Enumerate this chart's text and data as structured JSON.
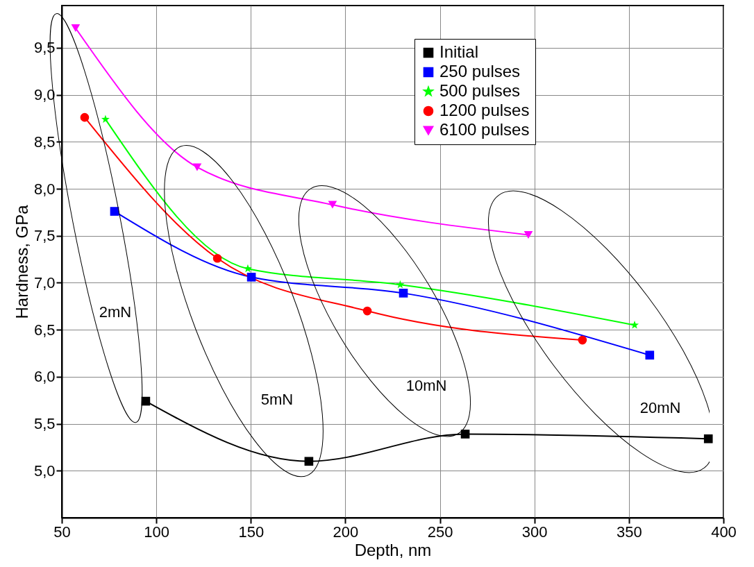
{
  "chart_data": {
    "type": "line",
    "xlabel": "Depth, nm",
    "ylabel": "Hardness, GPa",
    "xlim": [
      50,
      400
    ],
    "xticks": [
      50,
      100,
      150,
      200,
      250,
      300,
      350,
      400
    ],
    "ylim": [
      4.5,
      9.95
    ],
    "yticks": [
      {
        "value": 5.0,
        "label": "5,0"
      },
      {
        "value": 5.5,
        "label": "5,5"
      },
      {
        "value": 6.0,
        "label": "6,0"
      },
      {
        "value": 6.5,
        "label": "6,5"
      },
      {
        "value": 7.0,
        "label": "7,0"
      },
      {
        "value": 7.5,
        "label": "7,5"
      },
      {
        "value": 8.0,
        "label": "8,0"
      },
      {
        "value": 8.5,
        "label": "8,5"
      },
      {
        "value": 9.0,
        "label": "9,0"
      },
      {
        "value": 9.5,
        "label": "9,5"
      }
    ],
    "grid": true,
    "legend": "top right",
    "series": [
      {
        "name": "Initial",
        "color": "#000000",
        "marker": "square",
        "x": [
          94.4,
          180.7,
          263.4,
          392
        ],
        "values": [
          5.74,
          5.1,
          5.39,
          5.34
        ]
      },
      {
        "name": "250 pulses",
        "color": "#0000ff",
        "marker": "square",
        "x": [
          77.9,
          150.3,
          230.7,
          361
        ],
        "values": [
          7.76,
          7.06,
          6.89,
          6.23
        ]
      },
      {
        "name": "500 pulses",
        "color": "#00ff00",
        "marker": "star",
        "x": [
          73.1,
          148.4,
          229,
          353
        ],
        "values": [
          8.74,
          7.15,
          6.98,
          6.55
        ]
      },
      {
        "name": "1200 pulses",
        "color": "#ff0000",
        "marker": "circle",
        "x": [
          62.1,
          132.3,
          211.6,
          325.4
        ],
        "values": [
          8.76,
          7.26,
          6.7,
          6.39
        ]
      },
      {
        "name": "6100 pulses",
        "color": "#ff00ff",
        "marker": "triangle",
        "x": [
          57.3,
          121.6,
          193.2,
          296.8
        ],
        "values": [
          9.71,
          8.23,
          7.83,
          7.51
        ]
      }
    ],
    "annotations": [
      "2mN",
      "5mN",
      "10mN",
      "20mN"
    ]
  }
}
